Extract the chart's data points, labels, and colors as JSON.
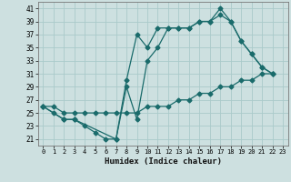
{
  "bg_color": "#cde0e0",
  "grid_color": "#aacaca",
  "line_color": "#1a6b6b",
  "xlabel": "Humidex (Indice chaleur)",
  "xlim": [
    -0.5,
    23.5
  ],
  "ylim": [
    20,
    42
  ],
  "xticks": [
    0,
    1,
    2,
    3,
    4,
    5,
    6,
    7,
    8,
    9,
    10,
    11,
    12,
    13,
    14,
    15,
    16,
    17,
    18,
    19,
    20,
    21,
    22,
    23
  ],
  "yticks": [
    21,
    23,
    25,
    27,
    29,
    31,
    33,
    35,
    37,
    39,
    41
  ],
  "line1_x": [
    0,
    1,
    2,
    3,
    4,
    5,
    6,
    7,
    8,
    9,
    10,
    11,
    12,
    13,
    14,
    15,
    16,
    17,
    18,
    19,
    20,
    21,
    22
  ],
  "line1_y": [
    26,
    25,
    24,
    24,
    23,
    22,
    21,
    21,
    29,
    24,
    33,
    35,
    38,
    38,
    38,
    39,
    39,
    41,
    39,
    36,
    34,
    32,
    31
  ],
  "line2_x": [
    0,
    2,
    3,
    7,
    8,
    9,
    10,
    11,
    12,
    13,
    14,
    15,
    16,
    17,
    18,
    19,
    20,
    21,
    22
  ],
  "line2_y": [
    26,
    24,
    24,
    21,
    30,
    37,
    35,
    38,
    38,
    38,
    38,
    39,
    39,
    40,
    39,
    36,
    34,
    32,
    31
  ],
  "line3_x": [
    0,
    1,
    2,
    3,
    4,
    5,
    6,
    7,
    8,
    9,
    10,
    11,
    12,
    13,
    14,
    15,
    16,
    17,
    18,
    19,
    20,
    21,
    22
  ],
  "line3_y": [
    26,
    26,
    25,
    25,
    25,
    25,
    25,
    25,
    25,
    25,
    26,
    26,
    26,
    27,
    27,
    28,
    28,
    29,
    29,
    30,
    30,
    31,
    31
  ]
}
